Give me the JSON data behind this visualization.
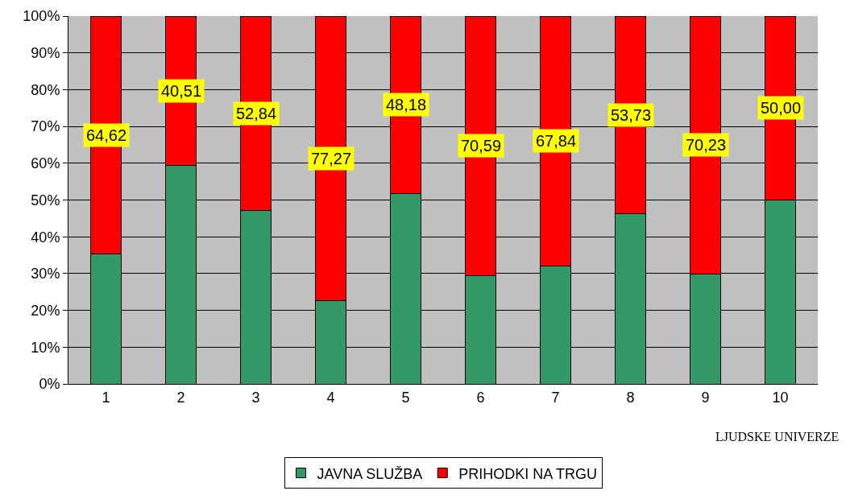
{
  "chart_data": {
    "type": "bar",
    "stacked": true,
    "categories": [
      "1",
      "2",
      "3",
      "4",
      "5",
      "6",
      "7",
      "8",
      "9",
      "10"
    ],
    "series": [
      {
        "name": "JAVNA SLUŽBA",
        "color": "#339966",
        "values": [
          35.38,
          59.49,
          47.16,
          22.73,
          51.82,
          29.41,
          32.16,
          46.27,
          29.77,
          50.0
        ]
      },
      {
        "name": "PRIHODKI NA TRGU",
        "color": "#ff0000",
        "values": [
          64.62,
          40.51,
          52.84,
          77.27,
          48.18,
          70.59,
          67.84,
          53.73,
          70.23,
          50.0
        ],
        "value_labels": [
          "64,62",
          "40,51",
          "52,84",
          "77,27",
          "48,18",
          "70,59",
          "67,84",
          "53,73",
          "70,23",
          "50,00"
        ]
      }
    ],
    "xlabel": "LJUDSKE UNIVERZE",
    "ylim": [
      0,
      100
    ],
    "yticks": [
      {
        "value": 0,
        "label": "0%"
      },
      {
        "value": 10,
        "label": "10%"
      },
      {
        "value": 20,
        "label": "20%"
      },
      {
        "value": 30,
        "label": "30%"
      },
      {
        "value": 40,
        "label": "40%"
      },
      {
        "value": 50,
        "label": "50%"
      },
      {
        "value": 60,
        "label": "60%"
      },
      {
        "value": 70,
        "label": "70%"
      },
      {
        "value": 80,
        "label": "80%"
      },
      {
        "value": 90,
        "label": "90%"
      },
      {
        "value": 100,
        "label": "100%"
      }
    ],
    "grid": "y",
    "legend": "bottom"
  }
}
